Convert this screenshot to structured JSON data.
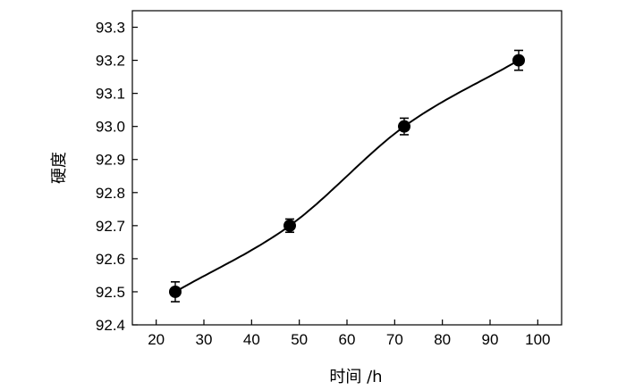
{
  "chart_data": {
    "type": "scatter",
    "title": "",
    "xlabel": "时间 /h",
    "ylabel": "硬度",
    "xlim": [
      15,
      105
    ],
    "ylim": [
      92.4,
      93.35
    ],
    "x_ticks": [
      20,
      30,
      40,
      50,
      60,
      70,
      80,
      90,
      100
    ],
    "x_tick_labels": [
      "20",
      "30",
      "40",
      "50",
      "60",
      "70",
      "80",
      "90",
      "100"
    ],
    "y_ticks": [
      92.4,
      92.5,
      92.6,
      92.7,
      92.8,
      92.9,
      93.0,
      93.1,
      93.2,
      93.3
    ],
    "y_tick_labels": [
      "92.4",
      "92.5",
      "92.6",
      "92.7",
      "92.8",
      "92.9",
      "93.0",
      "93.1",
      "93.2",
      "93.3"
    ],
    "grid": false,
    "legend": "none",
    "series": [
      {
        "x": [
          24,
          48,
          72,
          96
        ],
        "y": [
          92.5,
          92.7,
          93.0,
          93.2
        ],
        "error": [
          0.03,
          0.02,
          0.025,
          0.03
        ],
        "marker": "filled-circle",
        "fit_line": "smooth",
        "color": "#000000"
      }
    ]
  }
}
